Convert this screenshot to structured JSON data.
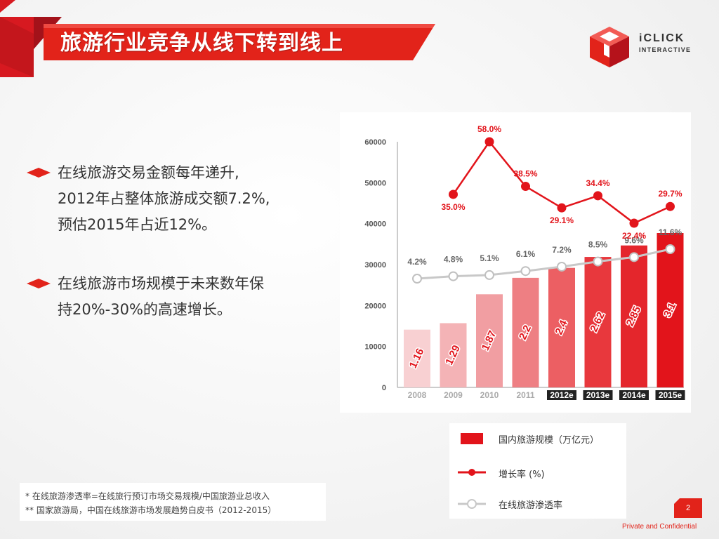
{
  "header": {
    "title": "旅游行业竞争从线下转到线上"
  },
  "logo": {
    "text_main": "iCLICK",
    "text_sub": "INTERACTIVE"
  },
  "bullets": [
    {
      "lines": [
        "在线旅游交易金额每年递升,",
        "2012年占整体旅游成交额7.2%,",
        "预估2015年占近12%。"
      ]
    },
    {
      "lines": [
        "在线旅游市场规模于未来数年保",
        "持20%-30%的高速增长。"
      ]
    }
  ],
  "chart_data": {
    "type": "bar",
    "categories": [
      "2008",
      "2009",
      "2010",
      "2011",
      "2012e",
      "2013e",
      "2014e",
      "2015e"
    ],
    "yticks": [
      "60000",
      "50000",
      "40000",
      "30000",
      "20000",
      "10000",
      "0"
    ],
    "ylim": [
      0,
      60000
    ],
    "series": [
      {
        "name": "国内旅游规模（万亿元）",
        "type": "bar",
        "values": [
          1.16,
          1.29,
          1.87,
          2.2,
          2.4,
          2.62,
          2.85,
          3.1
        ],
        "labels": [
          "1.16",
          "1.29",
          "1.87",
          "2.2",
          "2.4",
          "2.62",
          "2.85",
          "3.1"
        ]
      },
      {
        "name": "增长率 (%)",
        "type": "line",
        "values": [
          null,
          35.0,
          58.0,
          38.5,
          29.1,
          34.4,
          22.4,
          29.7
        ],
        "labels": [
          "",
          "35.0%",
          "58.0%",
          "38.5%",
          "29.1%",
          "34.4%",
          "22.4%",
          "29.7%"
        ]
      },
      {
        "name": "在线旅游渗透率",
        "type": "line",
        "values": [
          4.2,
          4.8,
          5.1,
          6.1,
          7.2,
          8.5,
          9.6,
          11.6
        ],
        "labels": [
          "4.2%",
          "4.8%",
          "5.1%",
          "6.1%",
          "7.2%",
          "8.5%",
          "9.6%",
          "11.6%"
        ]
      }
    ],
    "bar_colors": [
      "#f8d0d2",
      "#f4b3b6",
      "#f19ea2",
      "#ee7f83",
      "#ec5f63",
      "#e8383d",
      "#e4262c",
      "#e2141b"
    ],
    "legend_position": "bottom-right",
    "grid": false
  },
  "legend": [
    {
      "label": "国内旅游规模（万亿元）",
      "icon": "red-square-icon"
    },
    {
      "label": "增长率 (%)",
      "icon": "red-dot-line-icon"
    },
    {
      "label": "在线旅游渗透率",
      "icon": "gray-circle-line-icon"
    }
  ],
  "notes": [
    "*  在线旅游渗透率=在线旅行预订市场交易规模/中国旅游业总收入",
    "**  国家旅游局，中国在线旅游市场发展趋势白皮书（2012-2015）"
  ],
  "footer": {
    "page_number": "2",
    "confidential": "Private and Confidential"
  },
  "colors": {
    "brand_red": "#e2231a",
    "dark_red": "#b5121b",
    "gray_line": "#c8c8c8"
  }
}
